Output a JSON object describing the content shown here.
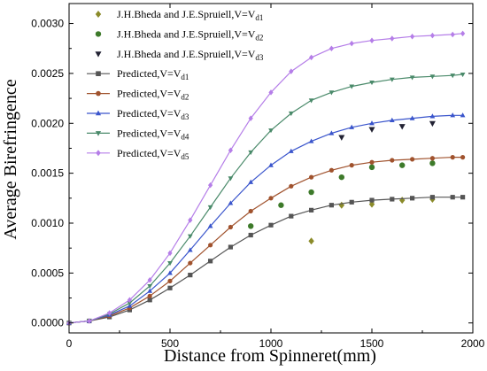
{
  "chart_data": {
    "type": "line",
    "title": "",
    "xlabel": "Distance from Spinneret(mm)",
    "ylabel": "Average Birefringence",
    "xlim": [
      0,
      2000
    ],
    "ylim": [
      -0.0001,
      0.0032
    ],
    "x_ticks": [
      0,
      500,
      1000,
      1500,
      2000
    ],
    "x_tick_labels": [
      "0",
      "500",
      "1000",
      "1500",
      "2000"
    ],
    "y_ticks": [
      0,
      0.0005,
      0.001,
      0.0015,
      0.002,
      0.0025,
      0.003
    ],
    "y_tick_labels": [
      "0.0000",
      "0.0005",
      "0.0010",
      "0.0015",
      "0.0020",
      "0.0025",
      "0.0030"
    ],
    "grid": false,
    "legend_position": "top-left",
    "series": [
      {
        "name": "J.H.Bheda and J.E.Spruiell,V=V",
        "subscript": "d1",
        "kind": "experimental",
        "marker": "diamond",
        "color": "#8b8b2a",
        "x": [
          1200,
          1350,
          1500,
          1650,
          1800
        ],
        "y": [
          0.00082,
          0.00118,
          0.00119,
          0.00123,
          0.00124
        ]
      },
      {
        "name": "J.H.Bheda and J.E.Spruiell,V=V",
        "subscript": "d2",
        "kind": "experimental",
        "marker": "circle",
        "color": "#3d7a2a",
        "x": [
          900,
          1050,
          1200,
          1350,
          1500,
          1650,
          1800
        ],
        "y": [
          0.00097,
          0.00118,
          0.00131,
          0.00146,
          0.00156,
          0.00158,
          0.0016
        ]
      },
      {
        "name": "J.H.Bheda and J.E.Spruiell,V=V",
        "subscript": "d3",
        "kind": "experimental",
        "marker": "triangle-down",
        "color": "#222233",
        "x": [
          1350,
          1500,
          1650,
          1800
        ],
        "y": [
          0.00186,
          0.00194,
          0.00197,
          0.002
        ]
      },
      {
        "name": "Predicted,V=V",
        "subscript": "d1",
        "kind": "predicted",
        "marker": "square",
        "color": "#555555",
        "x": [
          0,
          100,
          200,
          300,
          400,
          500,
          600,
          700,
          800,
          900,
          1000,
          1100,
          1200,
          1300,
          1400,
          1500,
          1600,
          1700,
          1800,
          1900,
          1950
        ],
        "y": [
          0.0,
          2e-05,
          6e-05,
          0.00013,
          0.00023,
          0.00035,
          0.00048,
          0.00062,
          0.00076,
          0.00088,
          0.00098,
          0.00107,
          0.00113,
          0.00118,
          0.00121,
          0.00123,
          0.00124,
          0.00125,
          0.00126,
          0.00126,
          0.00126
        ]
      },
      {
        "name": "Predicted,V=V",
        "subscript": "d2",
        "kind": "predicted",
        "marker": "circle",
        "color": "#a0522d",
        "x": [
          0,
          100,
          200,
          300,
          400,
          500,
          600,
          700,
          800,
          900,
          1000,
          1100,
          1200,
          1300,
          1400,
          1500,
          1600,
          1700,
          1800,
          1900,
          1950
        ],
        "y": [
          0.0,
          2e-05,
          7e-05,
          0.00015,
          0.00027,
          0.00042,
          0.0006,
          0.00078,
          0.00096,
          0.00112,
          0.00125,
          0.00137,
          0.00146,
          0.00153,
          0.00158,
          0.00161,
          0.00163,
          0.00164,
          0.00165,
          0.00166,
          0.00166
        ]
      },
      {
        "name": "Predicted,V=V",
        "subscript": "d3",
        "kind": "predicted",
        "marker": "triangle-up",
        "color": "#3a55cc",
        "x": [
          0,
          100,
          200,
          300,
          400,
          500,
          600,
          700,
          800,
          900,
          1000,
          1100,
          1200,
          1300,
          1400,
          1500,
          1600,
          1700,
          1800,
          1900,
          1950
        ],
        "y": [
          0.0,
          2e-05,
          8e-05,
          0.00017,
          0.00032,
          0.0005,
          0.00073,
          0.00097,
          0.0012,
          0.00141,
          0.00158,
          0.00172,
          0.00182,
          0.0019,
          0.00196,
          0.002,
          0.00203,
          0.00205,
          0.00207,
          0.00208,
          0.00208
        ]
      },
      {
        "name": "Predicted,V=V",
        "subscript": "d4",
        "kind": "predicted",
        "marker": "triangle-down",
        "color": "#4a8a6a",
        "x": [
          0,
          100,
          200,
          300,
          400,
          500,
          600,
          700,
          800,
          900,
          1000,
          1100,
          1200,
          1300,
          1400,
          1500,
          1600,
          1700,
          1800,
          1900,
          1950
        ],
        "y": [
          0.0,
          2e-05,
          9e-05,
          0.0002,
          0.00037,
          0.0006,
          0.00087,
          0.00116,
          0.00145,
          0.00171,
          0.00193,
          0.0021,
          0.00223,
          0.00231,
          0.00237,
          0.00241,
          0.00244,
          0.00246,
          0.00247,
          0.00248,
          0.00249
        ]
      },
      {
        "name": "Predicted,V=V",
        "subscript": "d5",
        "kind": "predicted",
        "marker": "diamond",
        "color": "#b57ee8",
        "x": [
          0,
          100,
          200,
          300,
          400,
          500,
          600,
          700,
          800,
          900,
          1000,
          1100,
          1200,
          1300,
          1400,
          1500,
          1600,
          1700,
          1800,
          1900,
          1950
        ],
        "y": [
          0.0,
          2e-05,
          0.0001,
          0.00023,
          0.00043,
          0.0007,
          0.00103,
          0.00138,
          0.00173,
          0.00205,
          0.00231,
          0.00252,
          0.00266,
          0.00275,
          0.0028,
          0.00283,
          0.00285,
          0.00287,
          0.00288,
          0.00289,
          0.0029
        ]
      }
    ]
  }
}
